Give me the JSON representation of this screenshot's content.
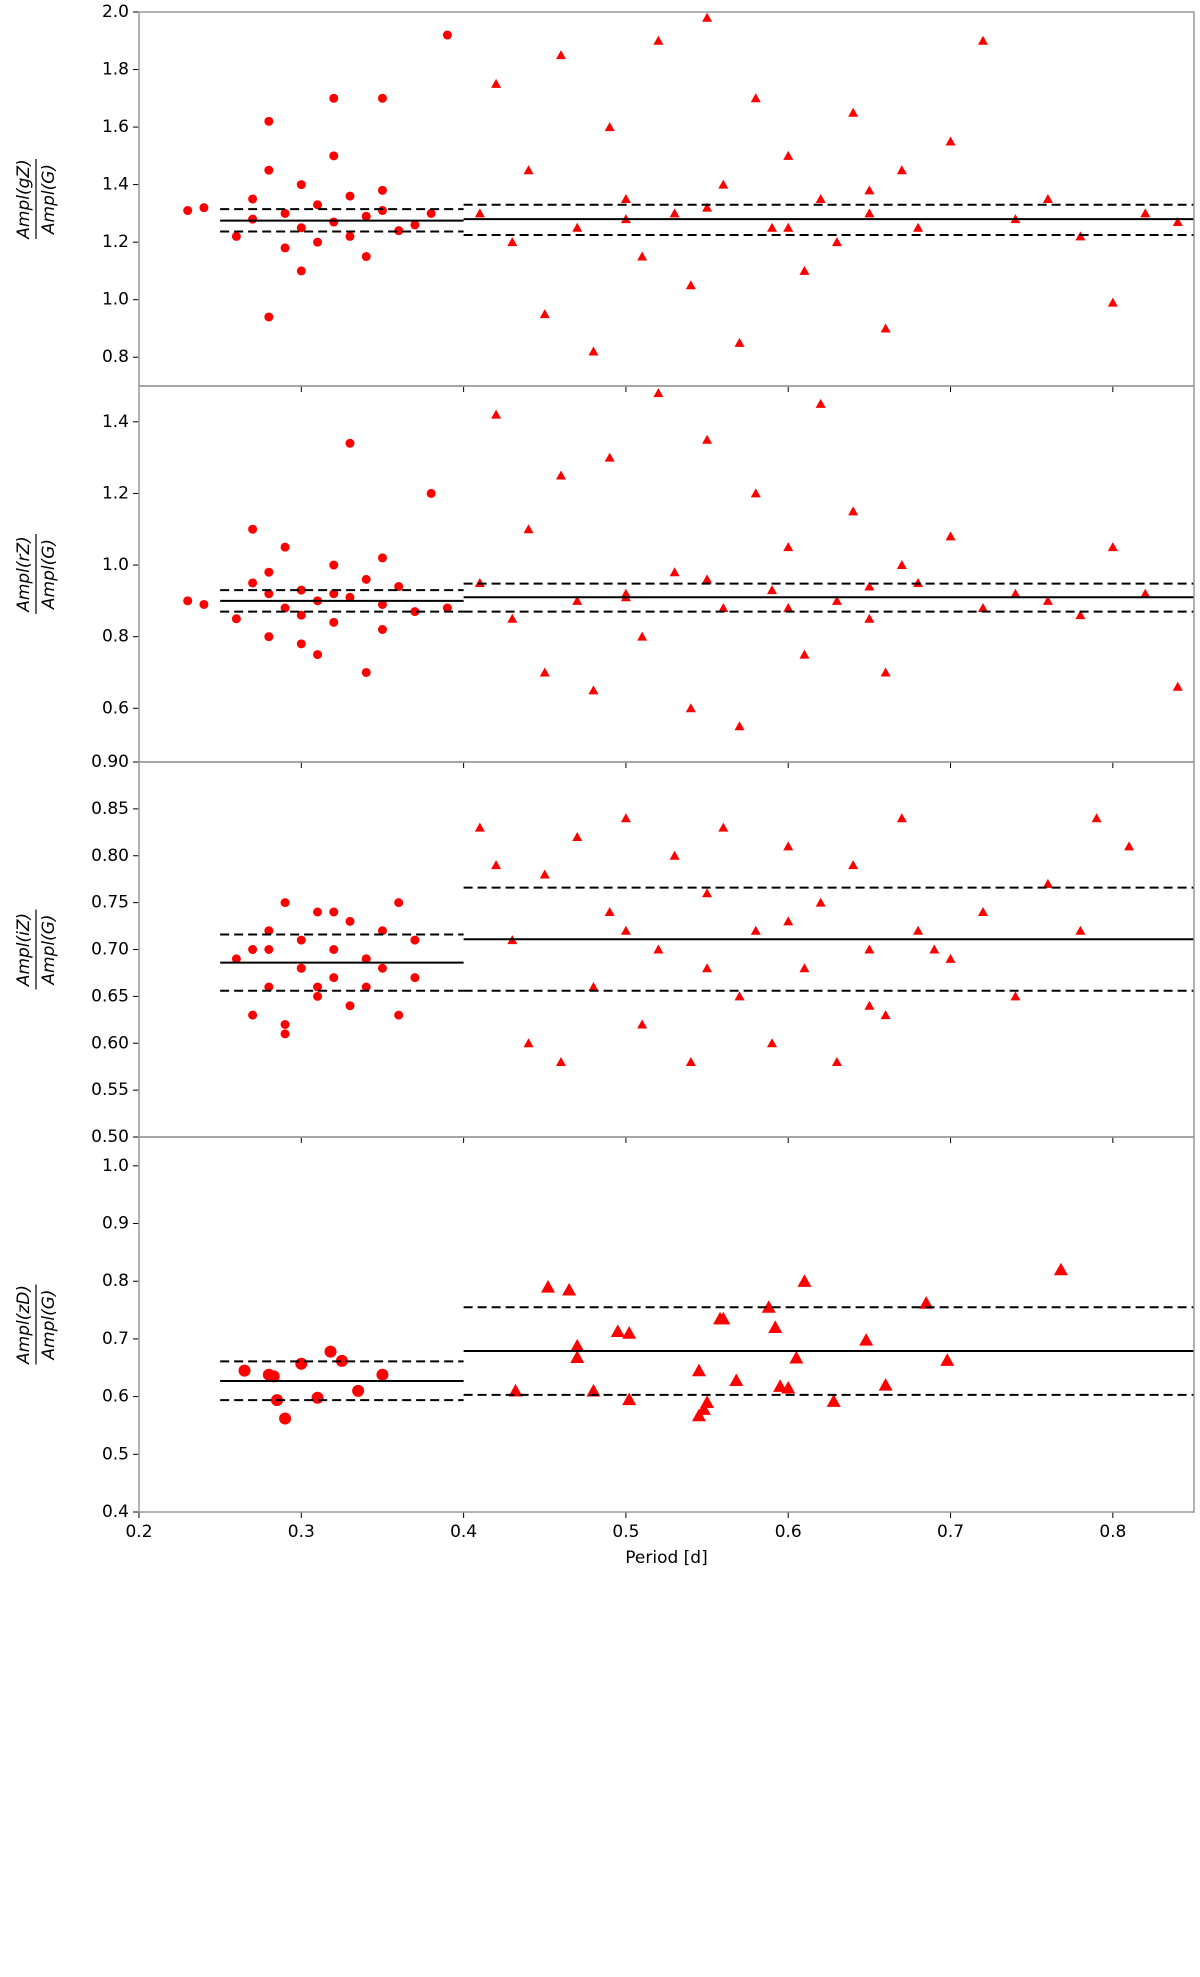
{
  "chart_data": [
    {
      "type": "scatter",
      "ylabel": {
        "numerator": "Ampl(gZ)",
        "denominator": "Ampl(G)"
      },
      "xlim": [
        0.2,
        0.85
      ],
      "xticks": [
        0.2,
        0.3,
        0.4,
        0.5,
        0.6,
        0.7,
        0.8
      ],
      "ylim": [
        0.7,
        2.0
      ],
      "yticks": [
        0.8,
        {
          "value": 1,
          "label": "1.0"
        },
        1.2,
        1.4,
        1.6,
        1.8,
        {
          "value": 2,
          "label": "2.0"
        }
      ],
      "series": [
        {
          "marker": "circle",
          "color": "#ff0000",
          "x": [
            0.23,
            0.24,
            0.26,
            0.27,
            0.27,
            0.28,
            0.28,
            0.29,
            0.29,
            0.3,
            0.3,
            0.31,
            0.31,
            0.32,
            0.32,
            0.33,
            0.33,
            0.34,
            0.34,
            0.35,
            0.35,
            0.36,
            0.37,
            0.38,
            0.39,
            0.28,
            0.3,
            0.32,
            0.35
          ],
          "values": [
            1.31,
            1.32,
            1.22,
            1.28,
            1.35,
            1.62,
            0.94,
            1.3,
            1.18,
            1.25,
            1.4,
            1.33,
            1.2,
            1.7,
            1.27,
            1.36,
            1.22,
            1.29,
            1.15,
            1.7,
            1.31,
            1.24,
            1.26,
            1.3,
            1.92,
            1.45,
            1.1,
            1.5,
            1.38
          ]
        },
        {
          "marker": "triangle",
          "color": "#ff0000",
          "x": [
            0.41,
            0.42,
            0.43,
            0.44,
            0.45,
            0.46,
            0.47,
            0.48,
            0.49,
            0.5,
            0.51,
            0.52,
            0.53,
            0.54,
            0.55,
            0.56,
            0.57,
            0.58,
            0.59,
            0.6,
            0.61,
            0.62,
            0.63,
            0.64,
            0.65,
            0.66,
            0.67,
            0.68,
            0.7,
            0.72,
            0.74,
            0.76,
            0.78,
            0.8,
            0.82,
            0.84,
            0.5,
            0.55,
            0.6,
            0.65
          ],
          "values": [
            1.3,
            1.75,
            1.2,
            1.45,
            0.95,
            1.85,
            1.25,
            0.82,
            1.6,
            1.35,
            1.15,
            1.9,
            1.3,
            1.05,
            1.98,
            1.4,
            0.85,
            1.7,
            1.25,
            1.5,
            1.1,
            1.35,
            1.2,
            1.65,
            1.3,
            0.9,
            1.45,
            1.25,
            1.55,
            1.9,
            1.28,
            1.35,
            1.22,
            0.99,
            1.3,
            1.27,
            1.28,
            1.32,
            1.25,
            1.38
          ]
        }
      ],
      "lines": [
        {
          "x": [
            0.25,
            0.4
          ],
          "y": 1.275,
          "style": "solid"
        },
        {
          "x": [
            0.25,
            0.4
          ],
          "y": 1.315,
          "style": "dashed"
        },
        {
          "x": [
            0.25,
            0.4
          ],
          "y": 1.237,
          "style": "dashed"
        },
        {
          "x": [
            0.4,
            0.85
          ],
          "y": 1.28,
          "style": "solid"
        },
        {
          "x": [
            0.4,
            0.85
          ],
          "y": 1.33,
          "style": "dashed"
        },
        {
          "x": [
            0.4,
            0.85
          ],
          "y": 1.225,
          "style": "dashed"
        }
      ]
    },
    {
      "type": "scatter",
      "ylabel": {
        "numerator": "Ampl(rZ)",
        "denominator": "Ampl(G)"
      },
      "xlim": [
        0.2,
        0.85
      ],
      "xticks": [
        0.2,
        0.3,
        0.4,
        0.5,
        0.6,
        0.7,
        0.8
      ],
      "ylim": [
        0.45,
        1.5
      ],
      "yticks": [
        0.6,
        0.8,
        {
          "value": 1,
          "label": "1.0"
        },
        1.2,
        1.4
      ],
      "series": [
        {
          "marker": "circle",
          "color": "#ff0000",
          "x": [
            0.23,
            0.24,
            0.26,
            0.27,
            0.27,
            0.28,
            0.28,
            0.29,
            0.29,
            0.3,
            0.3,
            0.31,
            0.31,
            0.32,
            0.32,
            0.33,
            0.33,
            0.34,
            0.34,
            0.35,
            0.35,
            0.36,
            0.37,
            0.38,
            0.39,
            0.28,
            0.3,
            0.32,
            0.35
          ],
          "values": [
            0.9,
            0.89,
            0.85,
            0.95,
            1.1,
            0.8,
            0.92,
            0.88,
            1.05,
            0.86,
            0.93,
            0.75,
            0.9,
            1.0,
            0.84,
            1.34,
            0.91,
            0.7,
            0.96,
            0.89,
            0.82,
            0.94,
            0.87,
            1.2,
            0.88,
            0.98,
            0.78,
            0.92,
            1.02
          ]
        },
        {
          "marker": "triangle",
          "color": "#ff0000",
          "x": [
            0.41,
            0.42,
            0.43,
            0.44,
            0.45,
            0.46,
            0.47,
            0.48,
            0.49,
            0.5,
            0.51,
            0.52,
            0.53,
            0.54,
            0.55,
            0.56,
            0.57,
            0.58,
            0.59,
            0.6,
            0.61,
            0.62,
            0.63,
            0.64,
            0.65,
            0.66,
            0.67,
            0.68,
            0.7,
            0.72,
            0.74,
            0.76,
            0.78,
            0.8,
            0.82,
            0.84,
            0.5,
            0.55,
            0.6,
            0.65
          ],
          "values": [
            0.95,
            1.42,
            0.85,
            1.1,
            0.7,
            1.25,
            0.9,
            0.65,
            1.3,
            0.92,
            0.8,
            1.48,
            0.98,
            0.6,
            1.35,
            0.88,
            0.55,
            1.2,
            0.93,
            1.05,
            0.75,
            1.45,
            0.9,
            1.15,
            0.85,
            0.7,
            1.0,
            0.95,
            1.08,
            0.88,
            0.92,
            0.9,
            0.86,
            1.05,
            0.92,
            0.66,
            0.91,
            0.96,
            0.88,
            0.94
          ]
        }
      ],
      "lines": [
        {
          "x": [
            0.25,
            0.4
          ],
          "y": 0.9,
          "style": "solid"
        },
        {
          "x": [
            0.25,
            0.4
          ],
          "y": 0.93,
          "style": "dashed"
        },
        {
          "x": [
            0.25,
            0.4
          ],
          "y": 0.87,
          "style": "dashed"
        },
        {
          "x": [
            0.4,
            0.85
          ],
          "y": 0.91,
          "style": "solid"
        },
        {
          "x": [
            0.4,
            0.85
          ],
          "y": 0.948,
          "style": "dashed"
        },
        {
          "x": [
            0.4,
            0.85
          ],
          "y": 0.87,
          "style": "dashed"
        }
      ]
    },
    {
      "type": "scatter",
      "ylabel": {
        "numerator": "Ampl(iZ)",
        "denominator": "Ampl(G)"
      },
      "xlim": [
        0.2,
        0.85
      ],
      "xticks": [
        0.2,
        0.3,
        0.4,
        0.5,
        0.6,
        0.7,
        0.8
      ],
      "ylim": [
        0.5,
        0.9
      ],
      "yticks": [
        {
          "value": 0.5,
          "label": "0.50"
        },
        0.55,
        {
          "value": 0.6,
          "label": "0.60"
        },
        0.65,
        {
          "value": 0.7,
          "label": "0.70"
        },
        0.75,
        {
          "value": 0.8,
          "label": "0.80"
        },
        0.85,
        {
          "value": 0.9,
          "label": "0.90"
        }
      ],
      "series": [
        {
          "marker": "circle",
          "color": "#ff0000",
          "x": [
            0.26,
            0.27,
            0.27,
            0.28,
            0.28,
            0.29,
            0.29,
            0.3,
            0.3,
            0.31,
            0.31,
            0.32,
            0.32,
            0.33,
            0.33,
            0.34,
            0.34,
            0.35,
            0.35,
            0.36,
            0.36,
            0.37,
            0.37,
            0.28,
            0.3,
            0.29,
            0.32,
            0.34,
            0.31
          ],
          "values": [
            0.69,
            0.63,
            0.7,
            0.72,
            0.66,
            0.75,
            0.62,
            0.68,
            0.71,
            0.65,
            0.74,
            0.67,
            0.7,
            0.64,
            0.73,
            0.69,
            0.66,
            0.72,
            0.68,
            0.75,
            0.63,
            0.71,
            0.67,
            0.7,
            0.68,
            0.61,
            0.74,
            0.69,
            0.66
          ]
        },
        {
          "marker": "triangle",
          "color": "#ff0000",
          "x": [
            0.41,
            0.42,
            0.43,
            0.44,
            0.45,
            0.46,
            0.47,
            0.48,
            0.49,
            0.5,
            0.51,
            0.52,
            0.53,
            0.54,
            0.55,
            0.56,
            0.57,
            0.58,
            0.59,
            0.6,
            0.61,
            0.62,
            0.63,
            0.64,
            0.65,
            0.66,
            0.67,
            0.68,
            0.7,
            0.72,
            0.74,
            0.76,
            0.78,
            0.79,
            0.81,
            0.69,
            0.5,
            0.55,
            0.6,
            0.65
          ],
          "values": [
            0.83,
            0.79,
            0.71,
            0.6,
            0.78,
            0.58,
            0.82,
            0.66,
            0.74,
            0.84,
            0.62,
            0.7,
            0.8,
            0.58,
            0.76,
            0.83,
            0.65,
            0.72,
            0.6,
            0.81,
            0.68,
            0.75,
            0.58,
            0.79,
            0.7,
            0.63,
            0.84,
            0.72,
            0.69,
            0.74,
            0.65,
            0.77,
            0.72,
            0.84,
            0.81,
            0.7,
            0.72,
            0.68,
            0.73,
            0.64
          ]
        }
      ],
      "lines": [
        {
          "x": [
            0.25,
            0.4
          ],
          "y": 0.686,
          "style": "solid"
        },
        {
          "x": [
            0.25,
            0.4
          ],
          "y": 0.716,
          "style": "dashed"
        },
        {
          "x": [
            0.25,
            0.4
          ],
          "y": 0.656,
          "style": "dashed"
        },
        {
          "x": [
            0.4,
            0.85
          ],
          "y": 0.711,
          "style": "solid"
        },
        {
          "x": [
            0.4,
            0.85
          ],
          "y": 0.766,
          "style": "dashed"
        },
        {
          "x": [
            0.4,
            0.85
          ],
          "y": 0.656,
          "style": "dashed"
        }
      ]
    },
    {
      "type": "scatter",
      "ylabel": {
        "numerator": "Ampl(zD)",
        "denominator": "Ampl(G)"
      },
      "xlabel": "Period [d]",
      "xlim": [
        0.2,
        0.85
      ],
      "xticks": [
        0.2,
        0.3,
        0.4,
        0.5,
        0.6,
        0.7,
        0.8
      ],
      "xticklabels": true,
      "ylim": [
        0.4,
        1.05
      ],
      "yticks": [
        0.4,
        0.5,
        0.6,
        0.7,
        0.8,
        0.9,
        {
          "value": 1,
          "label": "1.0"
        }
      ],
      "series": [
        {
          "marker": "circle",
          "color": "#ff0000",
          "size": "large",
          "x": [
            0.265,
            0.28,
            0.283,
            0.285,
            0.29,
            0.3,
            0.31,
            0.318,
            0.325,
            0.335,
            0.35
          ],
          "values": [
            0.645,
            0.638,
            0.635,
            0.594,
            0.562,
            0.657,
            0.598,
            0.678,
            0.662,
            0.61,
            0.638
          ]
        },
        {
          "marker": "triangle",
          "color": "#ff0000",
          "size": "large",
          "x": [
            0.432,
            0.452,
            0.465,
            0.47,
            0.47,
            0.48,
            0.495,
            0.502,
            0.502,
            0.545,
            0.545,
            0.548,
            0.55,
            0.558,
            0.568,
            0.588,
            0.592,
            0.595,
            0.6,
            0.605,
            0.61,
            0.628,
            0.648,
            0.66,
            0.685,
            0.698,
            0.768,
            0.56
          ],
          "values": [
            0.61,
            0.79,
            0.785,
            0.688,
            0.668,
            0.61,
            0.713,
            0.71,
            0.595,
            0.645,
            0.567,
            0.578,
            0.59,
            0.735,
            0.628,
            0.755,
            0.72,
            0.618,
            0.615,
            0.667,
            0.8,
            0.592,
            0.698,
            0.62,
            0.762,
            0.663,
            0.82,
            0.735
          ]
        }
      ],
      "lines": [
        {
          "x": [
            0.25,
            0.4
          ],
          "y": 0.627,
          "style": "solid"
        },
        {
          "x": [
            0.25,
            0.4
          ],
          "y": 0.661,
          "style": "dashed"
        },
        {
          "x": [
            0.25,
            0.4
          ],
          "y": 0.594,
          "style": "dashed"
        },
        {
          "x": [
            0.4,
            0.85
          ],
          "y": 0.679,
          "style": "solid"
        },
        {
          "x": [
            0.4,
            0.85
          ],
          "y": 0.755,
          "style": "dashed"
        },
        {
          "x": [
            0.4,
            0.85
          ],
          "y": 0.603,
          "style": "dashed"
        }
      ]
    }
  ]
}
